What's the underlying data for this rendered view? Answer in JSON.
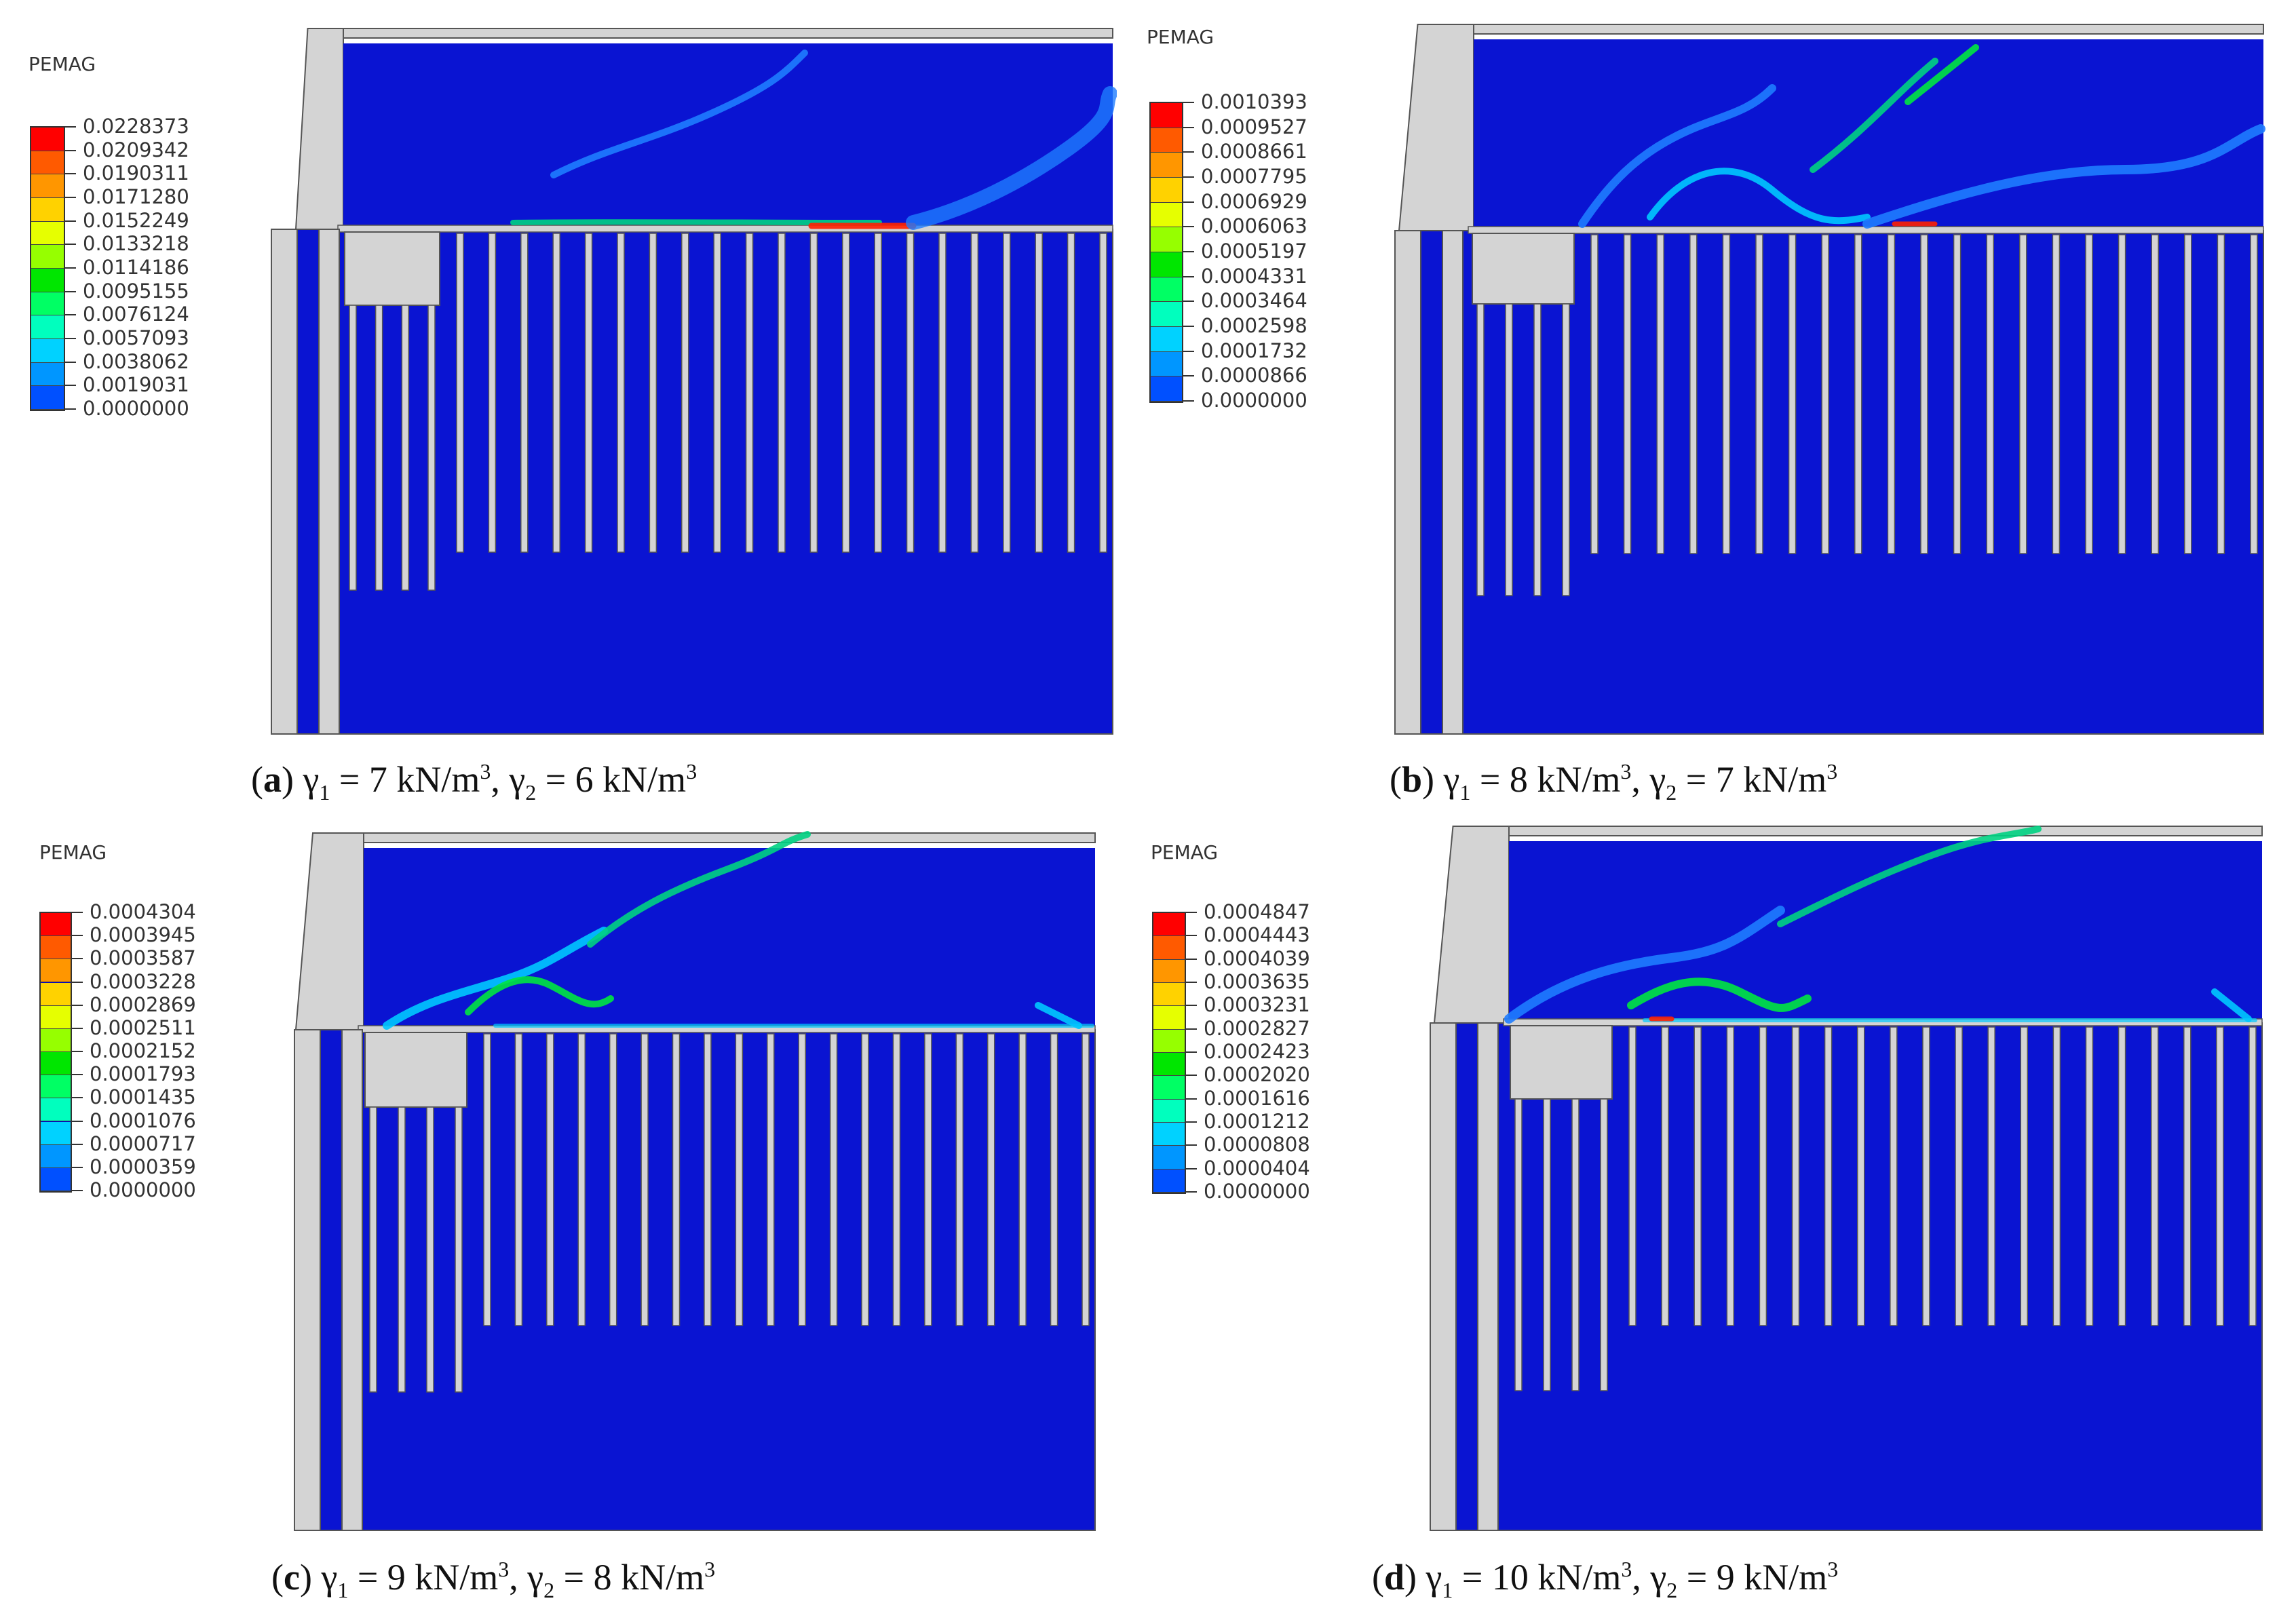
{
  "colors": {
    "soil": "#0a14d2",
    "structure": "#d4d4d4",
    "outline": "#555555",
    "legend": [
      "#ff0000",
      "#ff5a00",
      "#ff9600",
      "#ffd200",
      "#e6ff00",
      "#96ff00",
      "#00e600",
      "#00ff64",
      "#00ffbe",
      "#00d2ff",
      "#0096ff",
      "#0050ff",
      "#0000ff"
    ]
  },
  "panels": [
    {
      "id": "a",
      "legend_title": "PEMAG",
      "legend_values": [
        "0.0228373",
        "0.0209342",
        "0.0190311",
        "0.0171280",
        "0.0152249",
        "0.0133218",
        "0.0114186",
        "0.0095155",
        "0.0076124",
        "0.0057093",
        "0.0038062",
        "0.0019031",
        "0.0000000"
      ],
      "caption_letter": "a",
      "caption_gamma1": "7",
      "caption_gamma2": "6"
    },
    {
      "id": "b",
      "legend_title": "PEMAG",
      "legend_values": [
        "0.0010393",
        "0.0009527",
        "0.0008661",
        "0.0007795",
        "0.0006929",
        "0.0006063",
        "0.0005197",
        "0.0004331",
        "0.0003464",
        "0.0002598",
        "0.0001732",
        "0.0000866",
        "0.0000000"
      ],
      "caption_letter": "b",
      "caption_gamma1": "8",
      "caption_gamma2": "7"
    },
    {
      "id": "c",
      "legend_title": "PEMAG",
      "legend_values": [
        "0.0004304",
        "0.0003945",
        "0.0003587",
        "0.0003228",
        "0.0002869",
        "0.0002511",
        "0.0002152",
        "0.0001793",
        "0.0001435",
        "0.0001076",
        "0.0000717",
        "0.0000359",
        "0.0000000"
      ],
      "caption_letter": "c",
      "caption_gamma1": "9",
      "caption_gamma2": "8"
    },
    {
      "id": "d",
      "legend_title": "PEMAG",
      "legend_values": [
        "0.0004847",
        "0.0004443",
        "0.0004039",
        "0.0003635",
        "0.0003231",
        "0.0002827",
        "0.0002423",
        "0.0002020",
        "0.0001616",
        "0.0001212",
        "0.0000808",
        "0.0000404",
        "0.0000000"
      ],
      "caption_letter": "d",
      "caption_gamma1": "10",
      "caption_gamma2": "9"
    }
  ],
  "caption_text": {
    "gamma": "γ",
    "sub1": "1",
    "sub2": "2",
    "unit": "kN/m",
    "power": "3",
    "equals": " = ",
    "separator": ", "
  }
}
